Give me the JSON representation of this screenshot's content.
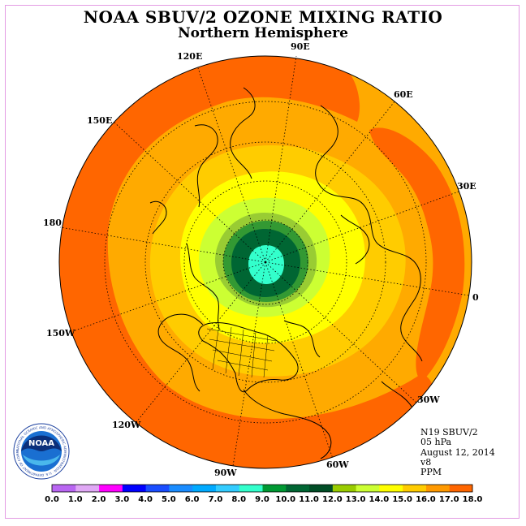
{
  "header": {
    "title": "NOAA SBUV/2 OZONE MIXING RATIO",
    "subtitle": "Northern Hemisphere"
  },
  "map": {
    "projection": "north-polar-stereographic",
    "longitude_labels": [
      "90E",
      "60E",
      "30E",
      "0",
      "30W",
      "60W",
      "90W",
      "120W",
      "150W",
      "180",
      "150E",
      "120E"
    ],
    "contour_fill_levels_ppm": [
      {
        "level": 15.0,
        "color": "#ff6600"
      },
      {
        "level": 14.0,
        "color": "#ff9900"
      },
      {
        "level": 13.0,
        "color": "#ffcc00"
      },
      {
        "level": 12.0,
        "color": "#ffff00"
      },
      {
        "level": 11.0,
        "color": "#ccff33"
      },
      {
        "level": 10.0,
        "color": "#99cc33"
      },
      {
        "level": 9.0,
        "color": "#339933"
      },
      {
        "level": 8.0,
        "color": "#006633"
      },
      {
        "level": 7.0,
        "color": "#33ffcc"
      }
    ]
  },
  "info": {
    "line1": "N19 SBUV/2",
    "line2": "05 hPa",
    "line3": "August 12, 2014",
    "line4": "v8",
    "line5": "PPM"
  },
  "colorbar": {
    "colors": [
      "#b966f2",
      "#e0a8f5",
      "#ff00ff",
      "#0000ff",
      "#1a4dff",
      "#1a8cff",
      "#00aaff",
      "#33ccff",
      "#33ffcc",
      "#009933",
      "#006633",
      "#004d26",
      "#99cc00",
      "#ccff33",
      "#ffff00",
      "#ffcc00",
      "#ff9900",
      "#ff6600",
      "#ff0000",
      "#cc0000",
      "#996633"
    ],
    "tick_labels": [
      "0.0",
      "1.0",
      "2.0",
      "3.0",
      "4.0",
      "5.0",
      "6.0",
      "7.0",
      "8.0",
      "9.0",
      "10.0",
      "11.0",
      "12.0",
      "13.0",
      "14.0",
      "15.0",
      "16.0",
      "17.0",
      "18.0"
    ]
  },
  "logo": {
    "center_text": "NOAA",
    "ring_text": "NATIONAL OCEANIC AND ATMOSPHERIC ADMINISTRATION · U.S. DEPARTMENT OF COMMERCE"
  }
}
